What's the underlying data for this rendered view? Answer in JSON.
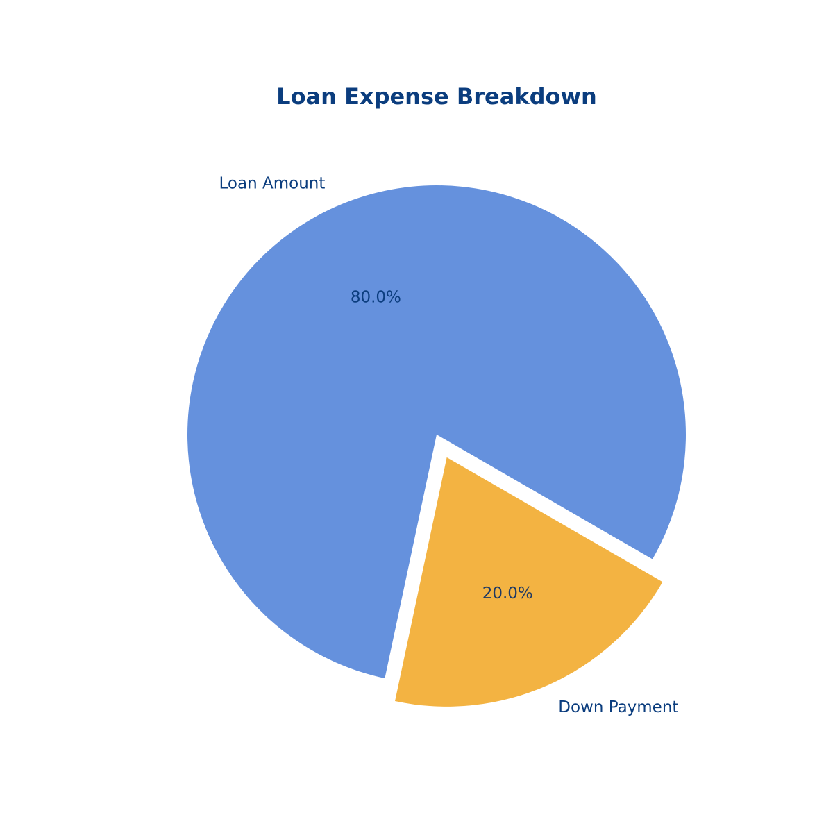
{
  "chart_data": {
    "type": "pie",
    "title": "Loan Expense Breakdown",
    "slices": [
      {
        "label": "Loan Amount",
        "value": 80,
        "percent_label": "80.0%",
        "color": "#6591DD",
        "exploded": false
      },
      {
        "label": "Down Payment",
        "value": 20,
        "percent_label": "20.0%",
        "color": "#F3B342",
        "exploded": true
      }
    ],
    "text_color": "#0B3D7E",
    "pct_text_color_dark": "#1F3A63",
    "legend": "none"
  }
}
